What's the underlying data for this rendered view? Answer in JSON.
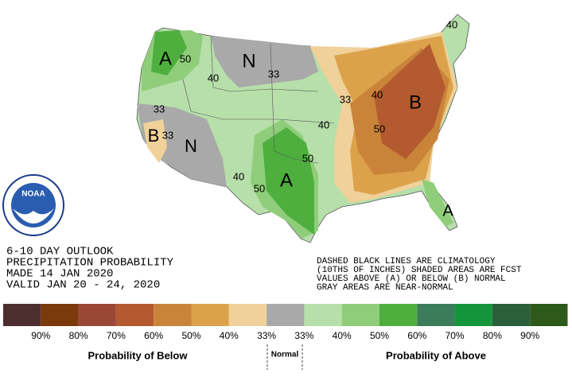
{
  "title_lines": [
    "6-10 DAY OUTLOOK",
    "PRECIPITATION PROBABILITY",
    "MADE  14 JAN 2020",
    "VALID  JAN 20 - 24, 2020"
  ],
  "notes": [
    "DASHED BLACK LINES ARE CLIMATOLOGY",
    "(10THS OF INCHES) SHADED AREAS ARE FCST",
    "VALUES ABOVE (A) OR BELOW (B) NORMAL",
    "GRAY AREAS ARE NEAR-NORMAL"
  ],
  "logo_text": "NOAA",
  "map_labels": [
    "A",
    "50",
    "40",
    "N",
    "33",
    "33",
    "B",
    "33",
    "N",
    "40",
    "50",
    "A",
    "50",
    "40",
    "33",
    "40",
    "B",
    "50",
    "A",
    "40"
  ],
  "legend": {
    "colors": [
      "#4e2f2f",
      "#7b3a0c",
      "#9a4738",
      "#b45a30",
      "#c9843a",
      "#dca24b",
      "#efd199",
      "#a9a9a9",
      "#b6dfaa",
      "#8fcd7a",
      "#4eaf3e",
      "#3b7d5b",
      "#14953c",
      "#2b5f3b",
      "#2d5a1b"
    ],
    "labels": [
      "90%",
      "80%",
      "70%",
      "60%",
      "50%",
      "40%",
      "33%",
      "33%",
      "40%",
      "50%",
      "60%",
      "70%",
      "80%",
      "90%"
    ],
    "below_label": "Probability of Below",
    "normal_label": "Normal",
    "above_label": "Probability of Above"
  }
}
